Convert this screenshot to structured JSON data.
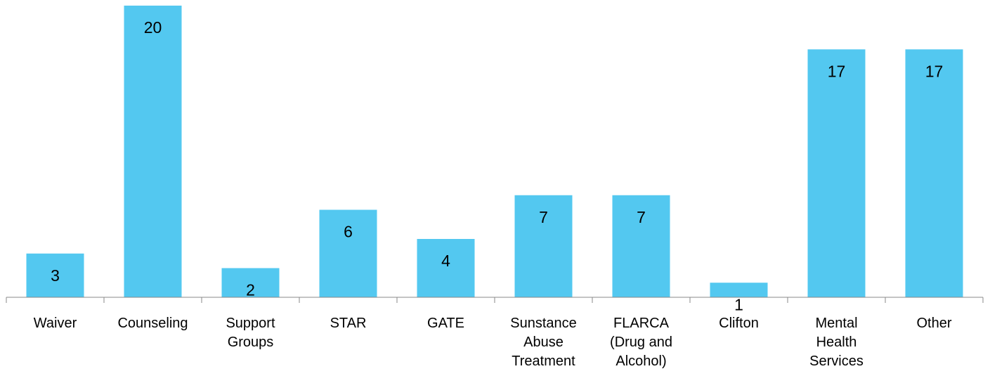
{
  "chart_data": {
    "type": "bar",
    "categories": [
      [
        "Waiver"
      ],
      [
        "Counseling"
      ],
      [
        "Support",
        "Groups"
      ],
      [
        "STAR"
      ],
      [
        "GATE"
      ],
      [
        "Sunstance",
        "Abuse",
        "Treatment"
      ],
      [
        "FLARCA",
        "(Drug and",
        "Alcohol)"
      ],
      [
        "Clifton"
      ],
      [
        "Mental",
        "Health",
        "Services"
      ],
      [
        "Other"
      ]
    ],
    "values": [
      3,
      20,
      2,
      6,
      4,
      7,
      7,
      1,
      17,
      17
    ],
    "data_labels": true,
    "ylim": [
      0,
      20
    ],
    "grid": false,
    "legend": "none",
    "colors": {
      "bar": "#53C8F0",
      "axis": "#888888",
      "text": "#000000"
    }
  }
}
